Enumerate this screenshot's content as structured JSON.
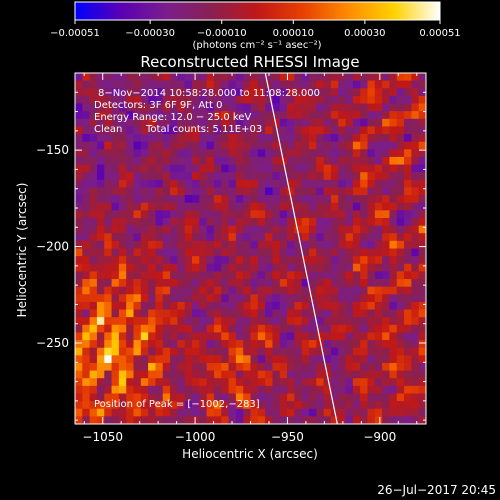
{
  "chart_data": {
    "type": "heatmap",
    "title": "Reconstructed RHESSI Image",
    "xlabel": "Heliocentric X (arcsec)",
    "ylabel": "Heliocentric Y (arcsec)",
    "xlim": [
      -1065,
      -875
    ],
    "ylim": [
      -292,
      -110
    ],
    "xticks": [
      -1050,
      -1000,
      -950,
      -900
    ],
    "yticks": [
      -250,
      -200,
      -150
    ],
    "x_tick_labels": [
      "−1050",
      "−1000",
      "−950",
      "−900"
    ],
    "y_tick_labels": [
      "−250",
      "−200",
      "−150"
    ],
    "colorbar": {
      "range": [
        -0.00051,
        0.00051
      ],
      "ticks": [
        -0.00051,
        -0.0003,
        -0.0001,
        0.0001,
        0.0003,
        0.00051
      ],
      "tick_labels": [
        "−0.00051",
        "−0.00030",
        "−0.00010",
        "0.00010",
        "0.00030",
        "0.00051"
      ],
      "unit_label": "(photons cm⁻² s⁻¹ asec⁻²)",
      "colormap": [
        "#0000ff",
        "#5a00b4",
        "#7a1e8c",
        "#8a2050",
        "#c01818",
        "#e84000",
        "#ff8c00",
        "#ffd200",
        "#ffffff"
      ]
    },
    "annotations": {
      "time_range": "8−Nov−2014 10:58:28.000 to 11:08:28.000",
      "detectors": "Detectors: 3F 6F 9F, Att 0",
      "energy": "Energy Range: 12.0 − 25.0 keV",
      "clean": "Clean",
      "total_counts": "Total counts: 5.11E+03",
      "peak": "Position of Peak = [−1002,−283]"
    },
    "limb_line": {
      "x": [
        -962,
        -923
      ],
      "y": [
        -110,
        -292
      ],
      "color": "#ffffff"
    },
    "peak_position": [
      -1002,
      -283
    ],
    "pixel_grid": {
      "nx": 48,
      "ny": 46
    }
  },
  "footer": {
    "date": "26−Jul−2017 20:45"
  }
}
